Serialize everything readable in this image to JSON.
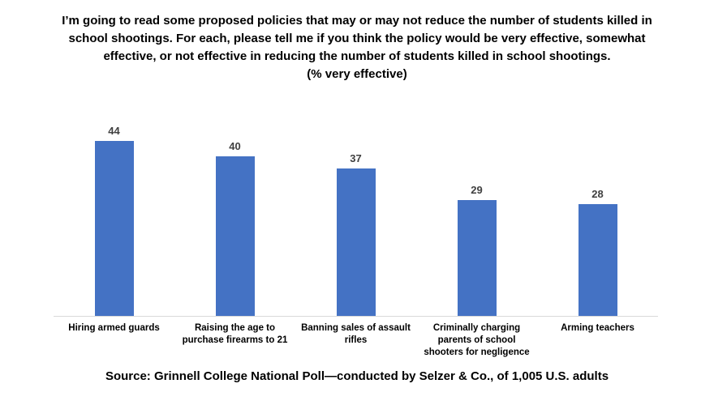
{
  "title": {
    "lines": [
      "I’m going to read some proposed policies that may or may not reduce the number of students killed in",
      "school shootings. For each, please tell me if you think the policy would be very effective, somewhat",
      "effective, or not effective in reducing the number of students killed in school shootings.",
      "(% very effective)"
    ]
  },
  "chart_data": {
    "type": "bar",
    "title": "I’m going to read some proposed policies that may or may not reduce the number of students killed in school shootings. For each, please tell me if you think the policy would be very effective, somewhat effective, or not effective in reducing the number of students killed in school shootings. (% very effective)",
    "categories": [
      "Hiring armed guards",
      "Raising the age to purchase firearms to 21",
      "Banning sales of assault rifles",
      "Criminally charging parents of school shooters for negligence",
      "Arming teachers"
    ],
    "values": [
      44,
      40,
      37,
      29,
      28
    ],
    "xlabel": "",
    "ylabel": "",
    "ylim": [
      0,
      50
    ],
    "grid": false,
    "legend": false,
    "value_labels_shown": true,
    "bar_color": "#4472c4",
    "value_label_color": "#404040",
    "axis_line_color": "#d9d9d9"
  },
  "source": {
    "text": "Source: Grinnell College National Poll—conducted by Selzer & Co., of 1,005 U.S. adults"
  }
}
